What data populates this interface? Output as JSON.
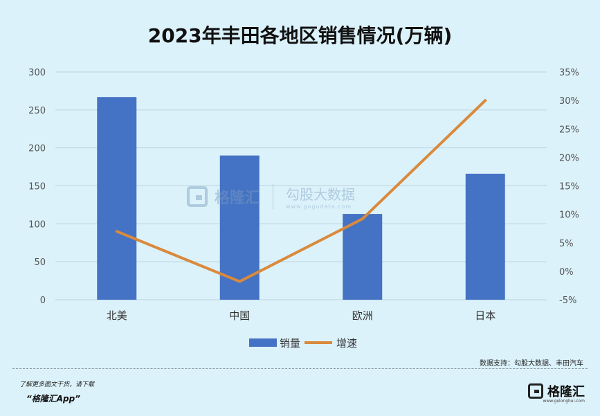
{
  "chart_data": {
    "type": "bar",
    "title": "2023年丰田各地区销售情况(万辆)",
    "categories": [
      "北美",
      "中国",
      "欧洲",
      "日本"
    ],
    "series": [
      {
        "name": "销量",
        "type": "bar",
        "axis": "left",
        "values": [
          267,
          190,
          113,
          166
        ],
        "color": "#4472c4"
      },
      {
        "name": "增速",
        "type": "line",
        "axis": "right",
        "unit": "%",
        "values": [
          7.0,
          -1.8,
          9.2,
          30.0
        ],
        "color": "#d98a3d"
      }
    ],
    "y_left": {
      "min": 0,
      "max": 300,
      "ticks": [
        "0",
        "50",
        "100",
        "150",
        "200",
        "250",
        "300"
      ]
    },
    "y_right": {
      "min": -5,
      "max": 35,
      "ticks": [
        "-5%",
        "0%",
        "5%",
        "10%",
        "15%",
        "20%",
        "25%",
        "30%",
        "35%"
      ]
    },
    "grid": true,
    "legend": "bottom"
  },
  "source": "数据支持：勾股大数据、丰田汽车",
  "watermark": {
    "brand": "格隆汇",
    "name": "勾股大数据",
    "url": "www.gogudata.com"
  },
  "footer": {
    "promo": "了解更多图文干货，请下载",
    "app": "“格隆汇App”",
    "logo": "格隆汇",
    "logo_url": "www.gelonghui.com"
  }
}
